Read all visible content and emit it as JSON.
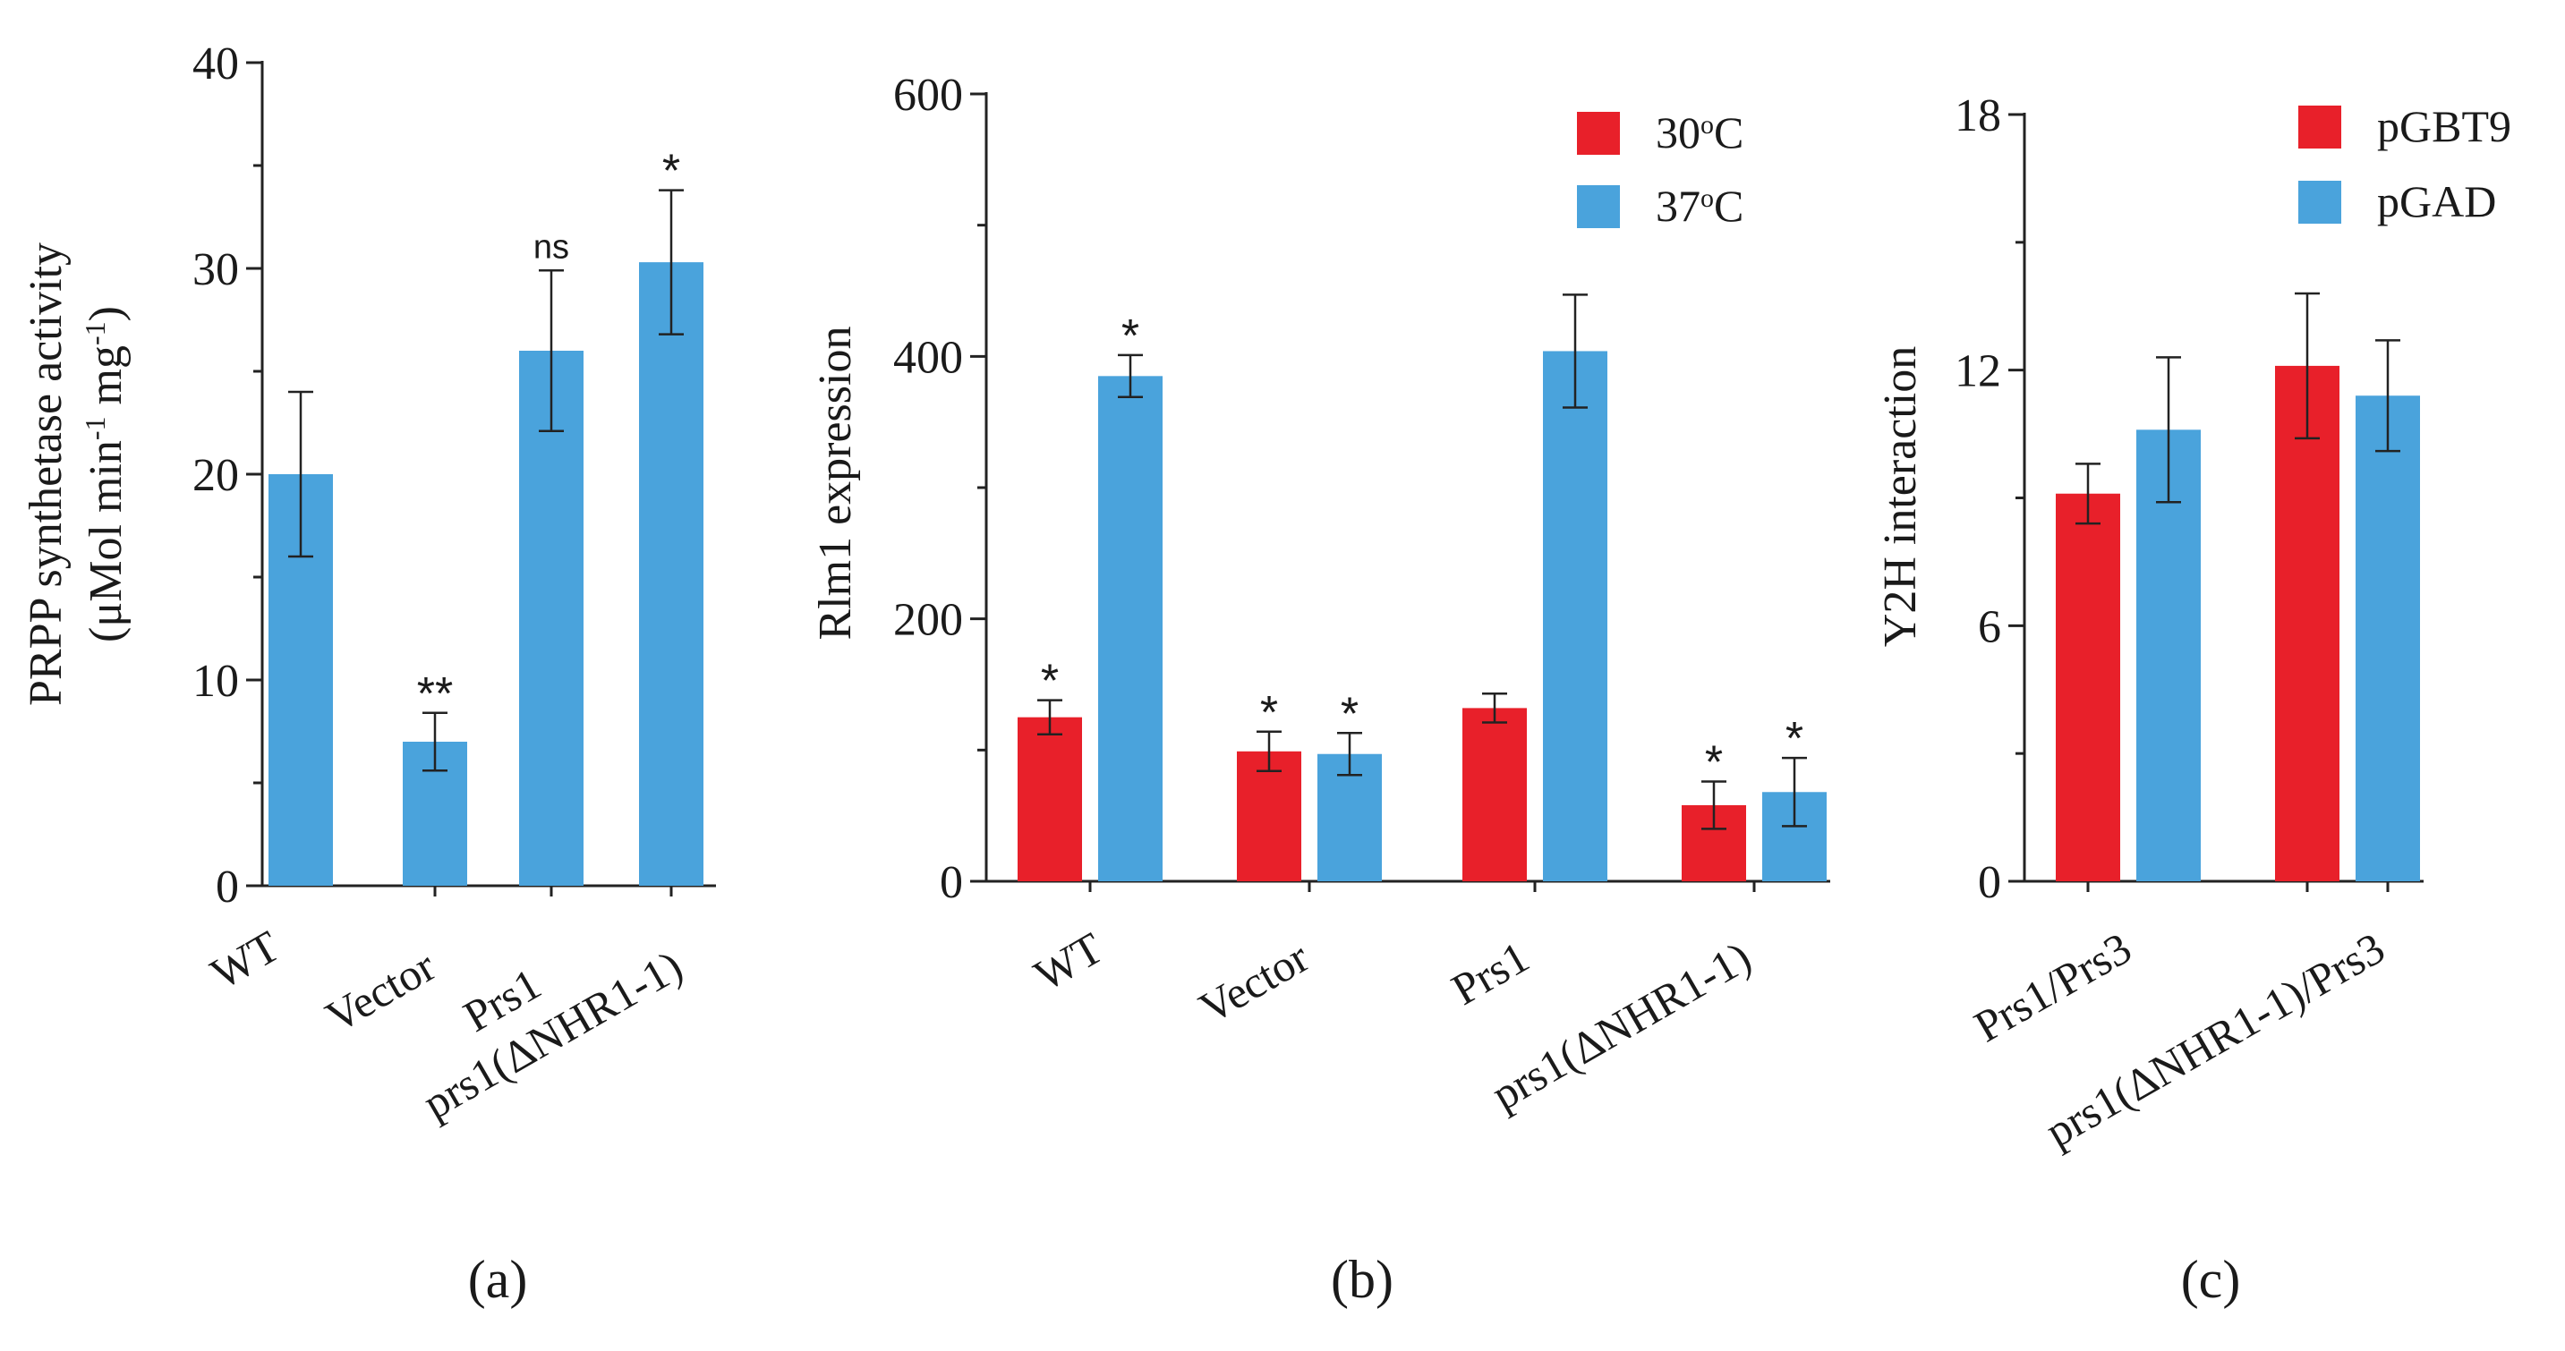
{
  "chart_data": [
    {
      "id": "a",
      "type": "bar",
      "panel_label": "(a)",
      "title": "",
      "xlabel": "",
      "ylabel_line1": "PRPP synthetase activity",
      "ylabel_line2_prefix": "(μMol min",
      "ylabel_line2_sup1": "-1",
      "ylabel_line2_mid": " mg",
      "ylabel_line2_sup2": "-1",
      "ylabel_line2_suffix": ")",
      "ylim": [
        0,
        40
      ],
      "yticks": [
        "0",
        "10",
        "20",
        "30",
        "40"
      ],
      "categories": [
        "WT",
        "Vector",
        "Prs1",
        "prs1(ΔNHR1-1)"
      ],
      "series": [
        {
          "name": "",
          "color": "#4aa3dc",
          "values": [
            20.0,
            7.0,
            26.0,
            30.3
          ],
          "errors": [
            4.0,
            1.4,
            3.9,
            3.5
          ],
          "annotations": [
            "",
            "**",
            "ns",
            "*"
          ]
        }
      ],
      "legend": null
    },
    {
      "id": "b",
      "type": "bar",
      "panel_label": "(b)",
      "title": "",
      "xlabel": "",
      "ylabel": "Rlm1 expression",
      "ylim": [
        0,
        600
      ],
      "yticks": [
        "0",
        "200",
        "400",
        "600"
      ],
      "categories": [
        "WT",
        "Vector",
        "Prs1",
        "prs1(ΔNHR1-1)"
      ],
      "series": [
        {
          "name": "30oC",
          "legend_base": "30",
          "legend_sup": "o",
          "legend_unit": "C",
          "color": "#e8202a",
          "values": [
            125,
            99,
            132,
            58
          ],
          "errors": [
            13,
            15,
            11,
            18
          ],
          "annotations": [
            "*",
            "*",
            "",
            "*"
          ]
        },
        {
          "name": "37oC",
          "legend_base": "37",
          "legend_sup": "o",
          "legend_unit": "C",
          "color": "#4aa3dc",
          "values": [
            385,
            97,
            404,
            68
          ],
          "errors": [
            16,
            16,
            43,
            26
          ],
          "annotations": [
            "*",
            "*",
            "",
            "*"
          ]
        }
      ],
      "legend": "top-right"
    },
    {
      "id": "c",
      "type": "bar",
      "panel_label": "(c)",
      "title": "",
      "xlabel": "",
      "ylabel": "Y2H interaction",
      "ylim": [
        0,
        18
      ],
      "yticks": [
        "0",
        "6",
        "12",
        "18"
      ],
      "categories": [
        "Prs1/Prs3",
        "prs1(ΔNHR1-1)/Prs3"
      ],
      "series": [
        {
          "name": "pGBT9",
          "color": "#e8202a",
          "values": [
            9.1,
            12.1
          ],
          "errors": [
            0.7,
            1.7
          ],
          "annotations": [
            "",
            ""
          ]
        },
        {
          "name": "pGAD",
          "color": "#4aa3dc",
          "values": [
            10.6,
            11.4
          ],
          "errors": [
            1.7,
            1.3
          ],
          "annotations": [
            "",
            ""
          ]
        }
      ],
      "legend": "top-right"
    }
  ]
}
